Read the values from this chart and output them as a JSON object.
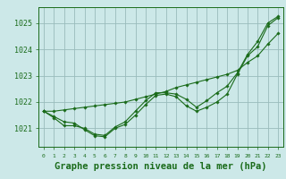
{
  "background_color": "#cce8e8",
  "grid_color": "#99bbbb",
  "line_color": "#1a6b1a",
  "marker_color": "#1a6b1a",
  "xlabel": "Graphe pression niveau de la mer (hPa)",
  "xlabel_fontsize": 7.5,
  "ylabel_values": [
    1021,
    1022,
    1023,
    1024,
    1025
  ],
  "xlim": [
    -0.5,
    23.5
  ],
  "ylim": [
    1020.3,
    1025.6
  ],
  "xticks": [
    0,
    1,
    2,
    3,
    4,
    5,
    6,
    7,
    8,
    9,
    10,
    11,
    12,
    13,
    14,
    15,
    16,
    17,
    18,
    19,
    20,
    21,
    22,
    23
  ],
  "series1": [
    1021.65,
    1021.45,
    1021.25,
    1021.2,
    1020.95,
    1020.72,
    1020.68,
    1021.0,
    1021.15,
    1021.5,
    1021.9,
    1022.25,
    1022.3,
    1022.2,
    1021.85,
    1021.65,
    1021.8,
    1022.0,
    1022.3,
    1023.05,
    1023.75,
    1024.1,
    1024.9,
    1025.2
  ],
  "series2": [
    1021.65,
    1021.4,
    1021.1,
    1021.1,
    1021.0,
    1020.78,
    1020.73,
    1021.05,
    1021.25,
    1021.65,
    1022.05,
    1022.35,
    1022.35,
    1022.3,
    1022.1,
    1021.8,
    1022.05,
    1022.35,
    1022.6,
    1023.1,
    1023.8,
    1024.3,
    1025.0,
    1025.25
  ],
  "series3_straight": [
    1021.65,
    1021.65,
    1021.7,
    1021.75,
    1021.8,
    1021.85,
    1021.9,
    1021.95,
    1022.0,
    1022.1,
    1022.2,
    1022.3,
    1022.4,
    1022.55,
    1022.65,
    1022.75,
    1022.85,
    1022.95,
    1023.05,
    1023.2,
    1023.5,
    1023.75,
    1024.2,
    1024.6
  ]
}
